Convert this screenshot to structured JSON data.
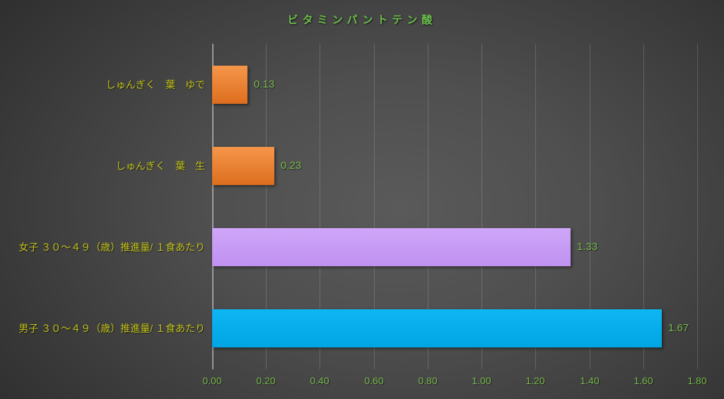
{
  "chart_data": {
    "type": "bar",
    "orientation": "horizontal",
    "title": "ビタミンパントテン酸",
    "categories": [
      "しゅんぎく　葉　ゆで",
      "しゅんぎく　葉　生",
      "女子 ３０～４９（歳）推進量/ １食あたり",
      "男子 ３０～４９（歳）推進量/ １食あたり"
    ],
    "values": [
      0.13,
      0.23,
      1.33,
      1.67
    ],
    "value_labels": [
      "0.13",
      "0.23",
      "1.33",
      "1.67"
    ],
    "bar_fills": [
      {
        "light": "#F5964B",
        "dark": "#DE6E1E"
      },
      {
        "light": "#F5964B",
        "dark": "#DE6E1E"
      },
      {
        "light": "#CFA6F9",
        "dark": "#C091F0"
      },
      {
        "light": "#0FB6F4",
        "dark": "#00A5E2"
      }
    ],
    "xlabel": "",
    "ylabel": "",
    "xlim": [
      0,
      1.8
    ],
    "x_ticks": [
      "0.00",
      "0.20",
      "0.40",
      "0.60",
      "0.80",
      "1.00",
      "1.20",
      "1.40",
      "1.60",
      "1.80"
    ],
    "x_tick_values": [
      0,
      0.2,
      0.4,
      0.6,
      0.8,
      1.0,
      1.2,
      1.4,
      1.6,
      1.8
    ],
    "grid": true,
    "legend_position": "none"
  },
  "styles": {
    "title_color": "#6CBE4B",
    "category_label_color": "#C2C21B",
    "value_label_color": "#77B94C",
    "tick_label_color": "#77B94C"
  }
}
